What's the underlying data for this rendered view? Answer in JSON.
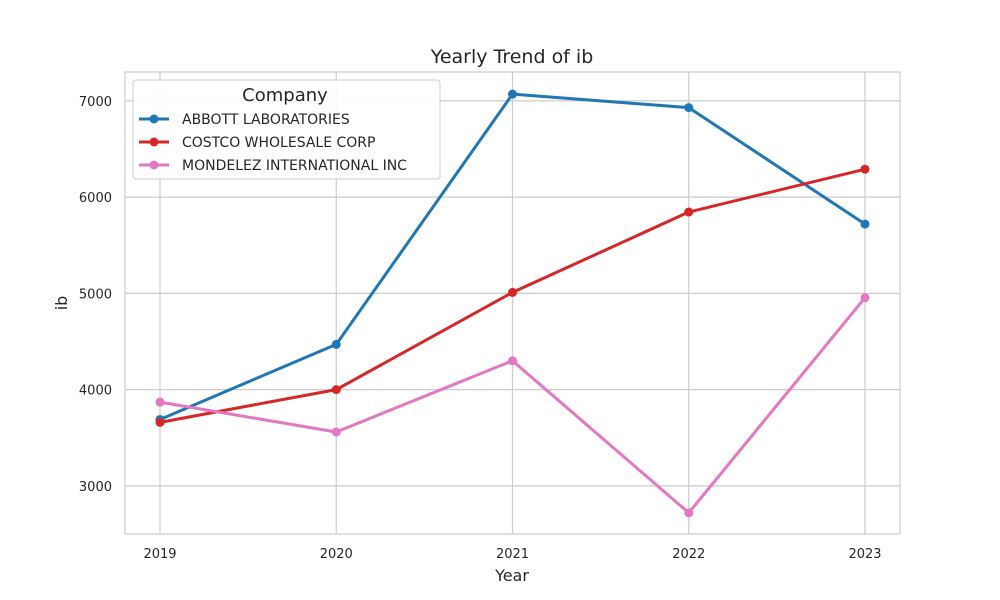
{
  "chart_data": {
    "type": "line",
    "title": "Yearly Trend of ib",
    "xlabel": "Year",
    "ylabel": "ib",
    "x": [
      "2019",
      "2020",
      "2021",
      "2022",
      "2023"
    ],
    "y_ticks": [
      "3000",
      "4000",
      "5000",
      "6000",
      "7000"
    ],
    "ylim": [
      2500,
      7300
    ],
    "grid": true,
    "legend": {
      "title": "Company",
      "placement": "top-left"
    },
    "series": [
      {
        "name": "ABBOTT LABORATORIES",
        "color": "#1f77b4",
        "values": [
          3690,
          4470,
          7070,
          6930,
          5720
        ]
      },
      {
        "name": "COSTCO WHOLESALE CORP",
        "color": "#d62728",
        "values": [
          3660,
          4000,
          5010,
          5845,
          6290
        ]
      },
      {
        "name": "MONDELEZ INTERNATIONAL INC",
        "color": "#e377c2",
        "values": [
          3870,
          3560,
          4300,
          2720,
          4955
        ]
      }
    ]
  }
}
